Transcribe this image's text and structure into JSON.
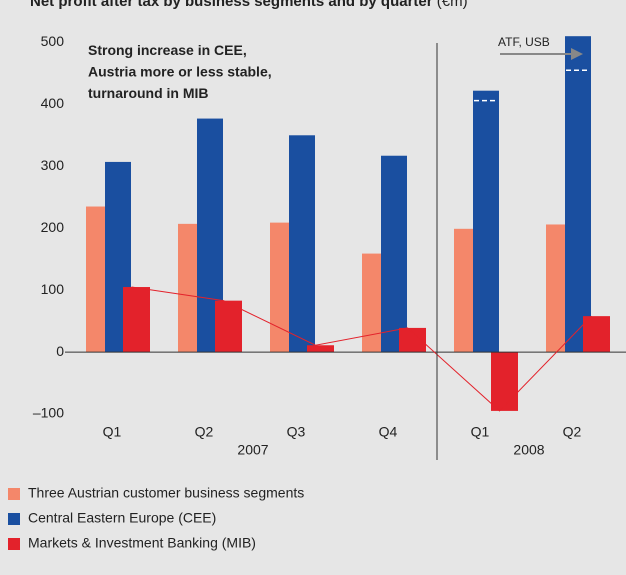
{
  "chart_data": {
    "type": "bar",
    "title": "Net profit after tax by business segments and by quarter",
    "unit": "(€m)",
    "annotation": "Strong increase in CEE,\nAustria more or less stable,\nturnaround in MIB",
    "categories": [
      "Q1",
      "Q2",
      "Q3",
      "Q4",
      "Q1",
      "Q2"
    ],
    "groups": [
      {
        "label": "2007",
        "count": 4
      },
      {
        "label": "2008",
        "count": 2
      }
    ],
    "series": [
      {
        "name": "Three Austrian customer business segments",
        "color": "#f4876a",
        "values": [
          235,
          207,
          209,
          159,
          199,
          206
        ]
      },
      {
        "name": "Central Eastern Europe (CEE)",
        "color": "#1a4fa0",
        "values": [
          307,
          377,
          350,
          317,
          422,
          510
        ]
      },
      {
        "name": "Markets & Investment Banking (MIB)",
        "color": "#e3222b",
        "values": [
          105,
          83,
          11,
          39,
          -95,
          58
        ],
        "line": true
      }
    ],
    "reference_marks": {
      "text": "ATF, USB",
      "categories": [
        4,
        5
      ],
      "values": [
        406,
        455
      ]
    },
    "ylim": [
      -100,
      520
    ],
    "yticks": [
      {
        "value": -100,
        "label": "–100"
      },
      0,
      100,
      200,
      300,
      400,
      500
    ],
    "grid": false
  }
}
